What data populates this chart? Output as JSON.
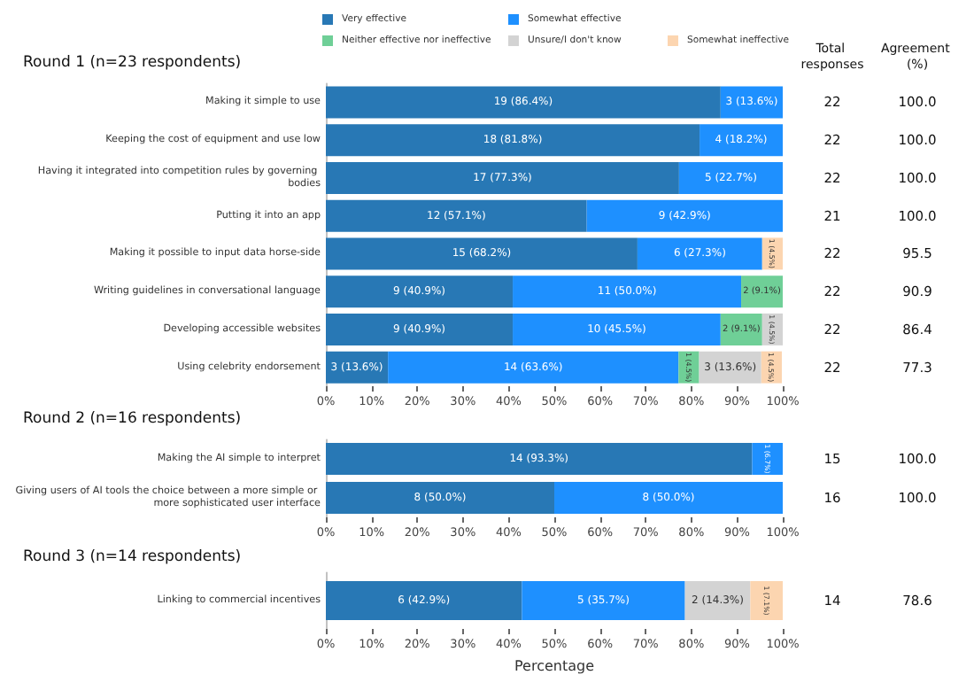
{
  "chart_data": [
    {
      "type": "bar",
      "orientation": "horizontal",
      "stacked": true,
      "title": "Round 1 (n=23 respondents)",
      "categories": [
        "Making it simple to use",
        "Keeping the cost of equipment and use low",
        "Having it integrated into competition rules by governing bodies",
        "Putting it into an app",
        "Making it possible to input data horse-side",
        "Writing guidelines in conversational language",
        "Developing accessible websites",
        "Using celebrity endorsement"
      ],
      "series": [
        {
          "name": "Very effective",
          "color": "#2878b5",
          "values": [
            86.4,
            81.8,
            77.3,
            57.1,
            68.2,
            40.9,
            40.9,
            13.6
          ],
          "value_labels": [
            "19 (86.4%)",
            "18 (81.8%)",
            "17 (77.3%)",
            "12 (57.1%)",
            "15 (68.2%)",
            "9 (40.9%)",
            "9 (40.9%)",
            "3 (13.6%)"
          ]
        },
        {
          "name": "Somewhat effective",
          "color": "#1e90ff",
          "values": [
            13.6,
            18.2,
            22.7,
            42.9,
            27.3,
            50.0,
            45.5,
            63.6
          ],
          "value_labels": [
            "3 (13.6%)",
            "4 (18.2%)",
            "5 (22.7%)",
            "9 (42.9%)",
            "6 (27.3%)",
            "11 (50.0%)",
            "10 (45.5%)",
            "14 (63.6%)"
          ]
        },
        {
          "name": "Neither effective nor ineffective",
          "color": "#6fcf97",
          "values": [
            null,
            null,
            null,
            null,
            null,
            9.1,
            9.1,
            4.5
          ],
          "value_labels": [
            null,
            null,
            null,
            null,
            null,
            "2 (9.1%)",
            "2 (9.1%)",
            "1 (4.5%)"
          ]
        },
        {
          "name": "Unsure/I don't know",
          "color": "#d3d3d3",
          "values": [
            null,
            null,
            null,
            null,
            null,
            null,
            4.5,
            13.6
          ],
          "value_labels": [
            null,
            null,
            null,
            null,
            null,
            null,
            "1 (4.5%)",
            "3 (13.6%)"
          ]
        },
        {
          "name": "Somewhat ineffective",
          "color": "#fcd5b0",
          "values": [
            null,
            null,
            null,
            null,
            4.5,
            null,
            null,
            4.5
          ],
          "value_labels": [
            null,
            null,
            null,
            null,
            "1 (4.5%)",
            null,
            null,
            "1 (4.5%)"
          ]
        }
      ],
      "xlim": [
        0,
        100
      ],
      "xticks": [
        {
          "value": 0,
          "label": "0%"
        },
        {
          "value": 10,
          "label": "10%"
        },
        {
          "value": 20,
          "label": "20%"
        },
        {
          "value": 30,
          "label": "30%"
        },
        {
          "value": 40,
          "label": "40%"
        },
        {
          "value": 50,
          "label": "50%"
        },
        {
          "value": 60,
          "label": "60%"
        },
        {
          "value": 70,
          "label": "70%"
        },
        {
          "value": 80,
          "label": "80%"
        },
        {
          "value": 90,
          "label": "90%"
        },
        {
          "value": 100,
          "label": "100%"
        }
      ],
      "legend": "top",
      "annotations": [
        "Total responses",
        "Agreement (%)",
        "22",
        "100.0",
        "22",
        "100.0",
        "22",
        "100.0",
        "21",
        "100.0",
        "22",
        "95.5",
        "22",
        "90.9",
        "22",
        "86.4",
        "22",
        "77.3"
      ]
    },
    {
      "type": "bar",
      "orientation": "horizontal",
      "stacked": true,
      "title": "Round 2 (n=16 respondents)",
      "categories": [
        "Making the AI simple to interpret",
        "Giving users of AI tools the choice between a more simple or more sophisticated user interface"
      ],
      "series": [
        {
          "color": "#2878b5",
          "values": [
            93.3,
            50.0
          ],
          "value_labels": [
            "14 (93.3%)",
            "8 (50.0%)"
          ]
        },
        {
          "color": "#1e90ff",
          "values": [
            6.7,
            50.0
          ],
          "value_labels": [
            "1 (6.7%)",
            "8 (50.0%)"
          ]
        }
      ],
      "xlim": [
        0,
        100
      ],
      "xticks": [
        {
          "value": 0,
          "label": "0%"
        },
        {
          "value": 10,
          "label": "10%"
        },
        {
          "value": 20,
          "label": "20%"
        },
        {
          "value": 30,
          "label": "30%"
        },
        {
          "value": 40,
          "label": "40%"
        },
        {
          "value": 50,
          "label": "50%"
        },
        {
          "value": 60,
          "label": "60%"
        },
        {
          "value": 70,
          "label": "70%"
        },
        {
          "value": 80,
          "label": "80%"
        },
        {
          "value": 90,
          "label": "90%"
        },
        {
          "value": 100,
          "label": "100%"
        }
      ],
      "annotations": [
        "15",
        "100.0",
        "16",
        "100.0"
      ]
    },
    {
      "type": "bar",
      "orientation": "horizontal",
      "stacked": true,
      "title": "Round 3 (n=14 respondents)",
      "xlabel": "Percentage",
      "categories": [
        "Linking to commercial incentives"
      ],
      "series": [
        {
          "color": "#2878b5",
          "values": [
            42.9
          ],
          "value_labels": [
            "6 (42.9%)"
          ]
        },
        {
          "color": "#1e90ff",
          "values": [
            35.7
          ],
          "value_labels": [
            "5 (35.7%)"
          ]
        },
        {
          "color": "#d3d3d3",
          "values": [
            14.3
          ],
          "value_labels": [
            "2 (14.3%)"
          ]
        },
        {
          "color": "#fcd5b0",
          "values": [
            7.1
          ],
          "value_labels": [
            "1 (7.1%)"
          ]
        }
      ],
      "xlim": [
        0,
        100
      ],
      "xticks": [
        {
          "value": 0,
          "label": "0%"
        },
        {
          "value": 10,
          "label": "10%"
        },
        {
          "value": 20,
          "label": "20%"
        },
        {
          "value": 30,
          "label": "30%"
        },
        {
          "value": 40,
          "label": "40%"
        },
        {
          "value": 50,
          "label": "50%"
        },
        {
          "value": 60,
          "label": "60%"
        },
        {
          "value": 70,
          "label": "70%"
        },
        {
          "value": 80,
          "label": "80%"
        },
        {
          "value": 90,
          "label": "90%"
        },
        {
          "value": 100,
          "label": "100%"
        }
      ],
      "annotations": [
        "14",
        "78.6"
      ]
    }
  ]
}
